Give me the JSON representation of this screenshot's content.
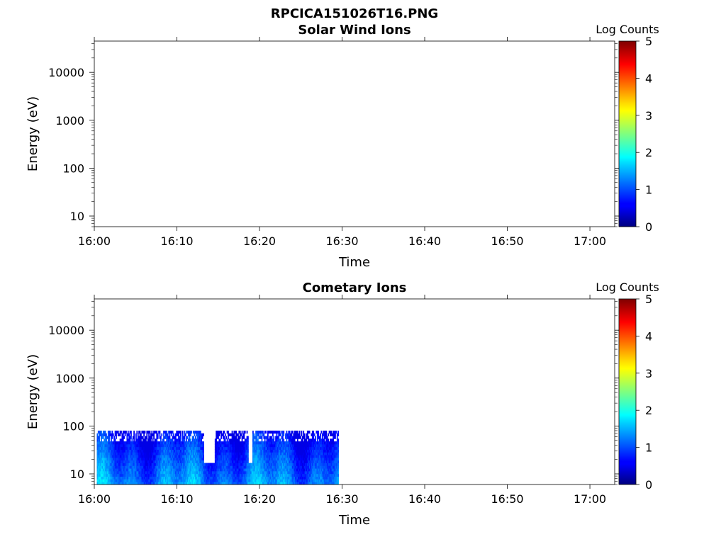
{
  "figure_title": "RPCICA151026T16.PNG",
  "chart_data": [
    {
      "type": "heatmap",
      "title": "Solar Wind Ions",
      "xlabel": "Time",
      "ylabel": "Energy (eV)",
      "x_ticks": [
        "16:00",
        "16:10",
        "16:20",
        "16:30",
        "16:40",
        "16:50",
        "17:00"
      ],
      "xlim_minutes": [
        0,
        63
      ],
      "y_scale": "log",
      "y_ticks": [
        10,
        100,
        1000,
        10000
      ],
      "y_tick_labels": [
        "10",
        "100",
        "1000",
        "10000"
      ],
      "ylim": [
        6,
        45000
      ],
      "colorbar": {
        "label": "Log Counts",
        "min": 0,
        "max": 5,
        "ticks": [
          "0",
          "1",
          "2",
          "3",
          "4",
          "5"
        ],
        "colormap": "jet"
      },
      "data": []
    },
    {
      "type": "heatmap",
      "title": "Cometary Ions",
      "xlabel": "Time",
      "ylabel": "Energy (eV)",
      "x_ticks": [
        "16:00",
        "16:10",
        "16:20",
        "16:30",
        "16:40",
        "16:50",
        "17:00"
      ],
      "xlim_minutes": [
        0,
        63
      ],
      "y_scale": "log",
      "y_ticks": [
        10,
        100,
        1000,
        10000
      ],
      "y_tick_labels": [
        "10",
        "100",
        "1000",
        "10000"
      ],
      "ylim": [
        6,
        45000
      ],
      "colorbar": {
        "label": "Log Counts",
        "min": 0,
        "max": 5,
        "ticks": [
          "0",
          "1",
          "2",
          "3",
          "4",
          "5"
        ],
        "colormap": "jet"
      },
      "data_time_range_minutes": [
        0.3,
        29.5
      ],
      "data_energy_range_ev": [
        6,
        80
      ],
      "data_gap_minutes": [
        [
          13.2,
          14.5
        ],
        [
          18.6,
          19.1
        ]
      ],
      "typical_log_counts": [
        0.5,
        1.9
      ]
    }
  ]
}
